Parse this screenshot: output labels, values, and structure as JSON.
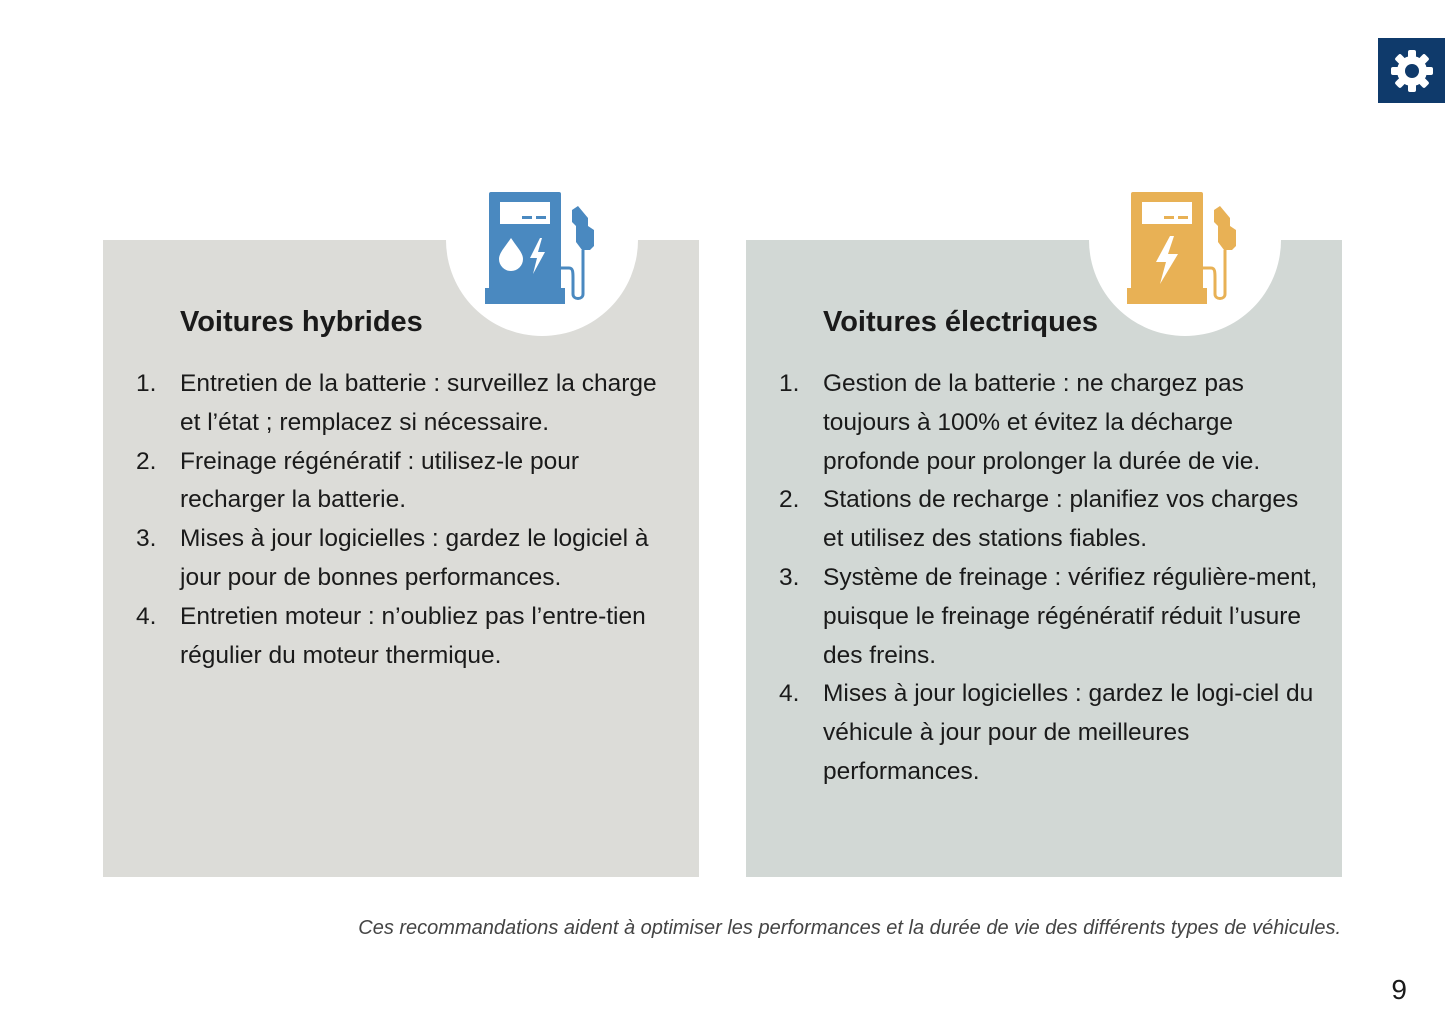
{
  "colors": {
    "hybrid_card": "#dcdcd8",
    "electric_card": "#d2d8d5",
    "hybrid_icon": "#4a89c0",
    "electric_icon": "#e8b155",
    "gear_bg": "#0f3a6b"
  },
  "header": {
    "icon": "gear-icon"
  },
  "hybrid": {
    "icon": "fuel-pump-drop-bolt-icon",
    "title": "Voitures hybrides",
    "items": [
      {
        "n": "1.",
        "text": "Entretien de la batterie : surveillez la charge et l’état ; remplacez si nécessaire."
      },
      {
        "n": "2.",
        "text": "Freinage régénératif : utilisez-le pour recharger la batterie."
      },
      {
        "n": "3.",
        "text": "Mises à jour logicielles : gardez le logiciel à jour pour de bonnes performances."
      },
      {
        "n": "4.",
        "text": "Entretien moteur : n’oubliez pas l’entre-tien régulier du moteur thermique."
      }
    ]
  },
  "electric": {
    "icon": "charging-station-bolt-icon",
    "title": "Voitures électriques",
    "items": [
      {
        "n": "1.",
        "text": "Gestion de la batterie : ne chargez pas toujours à 100% et évitez la décharge profonde pour prolonger la durée de vie."
      },
      {
        "n": "2.",
        "text": "Stations de recharge : planifiez vos charges et utilisez des stations fiables."
      },
      {
        "n": "3.",
        "text": "Système de freinage : vérifiez régulière-ment, puisque le freinage régénératif réduit l’usure des freins."
      },
      {
        "n": "4.",
        "text": "Mises à jour logicielles : gardez le logi-ciel du véhicule à jour pour de meilleures performances."
      }
    ]
  },
  "footer": {
    "note": "Ces recommandations aident à optimiser les performances et la durée de vie des différents types de véhicules.",
    "page_number": "9"
  }
}
